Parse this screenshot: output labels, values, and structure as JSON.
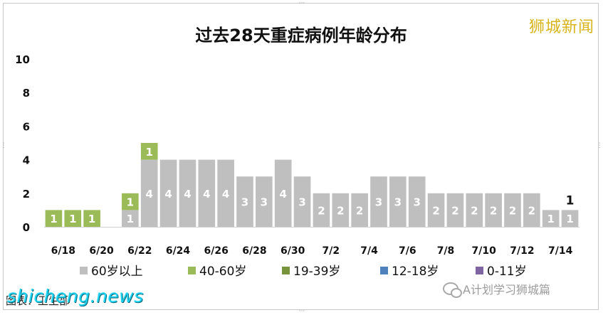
{
  "watermark_brand": "狮城新闻",
  "source_label": "图表：",
  "source_text": "卫生部",
  "site_watermark": "shicheng.news",
  "wechat_label": "A计划学习狮城篇",
  "colors": {
    "age_60_plus": "#bfbfbf",
    "age_40_60": "#9bbb59",
    "age_19_39": "#77933c",
    "age_12_18": "#4f81bd",
    "age_0_11": "#8064a2",
    "frame": "#c8c8c8",
    "title": "#111111"
  },
  "chart_data": {
    "type": "bar",
    "stacked": true,
    "title": "过去28天重症病例年龄分布",
    "xlabel": "",
    "ylabel": "",
    "ylim": [
      0,
      10
    ],
    "yticks": [
      0,
      2,
      4,
      6,
      8,
      10
    ],
    "grid": false,
    "legend_position": "bottom",
    "categories": [
      "6/18",
      "6/19",
      "6/20",
      "6/21",
      "6/22",
      "6/23",
      "6/24",
      "6/25",
      "6/26",
      "6/27",
      "6/28",
      "6/29",
      "6/30",
      "7/1",
      "7/2",
      "7/3",
      "7/4",
      "7/5",
      "7/6",
      "7/7",
      "7/8",
      "7/9",
      "7/10",
      "7/11",
      "7/12",
      "7/13",
      "7/14",
      "7/15"
    ],
    "tick_labels": [
      "6/18",
      "",
      "6/20",
      "",
      "6/22",
      "",
      "6/24",
      "",
      "6/26",
      "",
      "6/28",
      "",
      "6/30",
      "",
      "7/2",
      "",
      "7/4",
      "",
      "7/6",
      "",
      "7/8",
      "",
      "7/10",
      "",
      "7/12",
      "",
      "7/14",
      ""
    ],
    "series": [
      {
        "name": "60岁以上",
        "color": "#bfbfbf",
        "values": [
          0,
          0,
          0,
          0,
          1,
          4,
          4,
          4,
          4,
          4,
          3,
          3,
          4,
          3,
          2,
          2,
          2,
          3,
          3,
          3,
          2,
          2,
          2,
          2,
          2,
          2,
          1,
          1
        ]
      },
      {
        "name": "40-60岁",
        "color": "#9bbb59",
        "values": [
          1,
          1,
          1,
          0,
          1,
          1,
          0,
          0,
          0,
          0,
          0,
          0,
          0,
          0,
          0,
          0,
          0,
          0,
          0,
          0,
          0,
          0,
          0,
          0,
          0,
          0,
          0,
          0
        ]
      },
      {
        "name": "19-39岁",
        "color": "#77933c",
        "values": [
          0,
          0,
          0,
          0,
          0,
          0,
          0,
          0,
          0,
          0,
          0,
          0,
          0,
          0,
          0,
          0,
          0,
          0,
          0,
          0,
          0,
          0,
          0,
          0,
          0,
          0,
          0,
          0
        ]
      },
      {
        "name": "12-18岁",
        "color": "#4f81bd",
        "values": [
          0,
          0,
          0,
          0,
          0,
          0,
          0,
          0,
          0,
          0,
          0,
          0,
          0,
          0,
          0,
          0,
          0,
          0,
          0,
          0,
          0,
          0,
          0,
          0,
          0,
          0,
          0,
          0
        ]
      },
      {
        "name": "0-11岁",
        "color": "#8064a2",
        "values": [
          0,
          0,
          0,
          0,
          0,
          0,
          0,
          0,
          0,
          0,
          0,
          0,
          0,
          0,
          0,
          0,
          0,
          0,
          0,
          0,
          0,
          0,
          0,
          0,
          0,
          0,
          0,
          0
        ]
      }
    ],
    "annotations": [
      {
        "category": "7/15",
        "text": "1"
      }
    ]
  }
}
